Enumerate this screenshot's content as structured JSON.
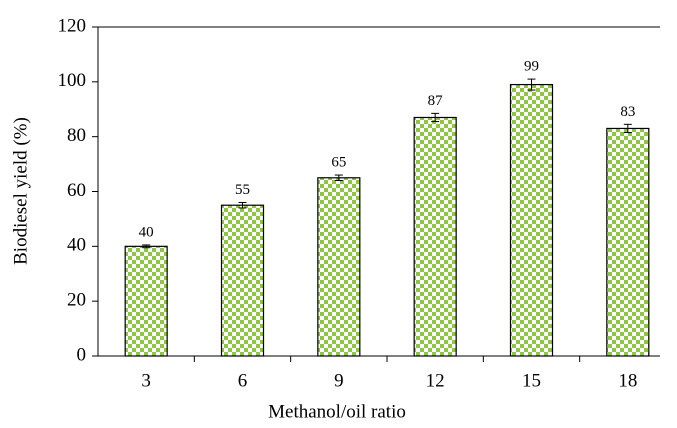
{
  "chart_data": {
    "type": "bar",
    "x_label": "Methanol/oil ratio",
    "y_label": "Biodiesel yield (%)",
    "categories": [
      "3",
      "6",
      "9",
      "12",
      "15",
      "18"
    ],
    "values": [
      40,
      55,
      65,
      87,
      99,
      83
    ],
    "errors": [
      0.5,
      1,
      1,
      1.5,
      2,
      1.5
    ],
    "color": "#8dc63f",
    "ylim": [
      0,
      120
    ],
    "yticks": [
      0,
      20,
      40,
      60,
      80,
      100,
      120
    ],
    "data_labels": true
  }
}
